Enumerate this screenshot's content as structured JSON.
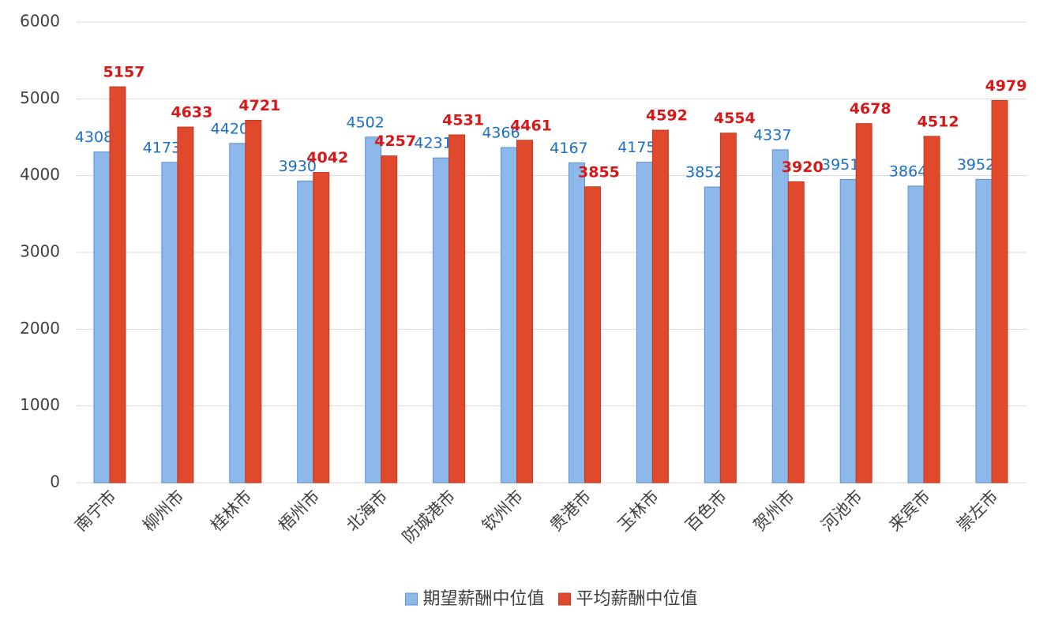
{
  "chart_data": {
    "type": "bar",
    "categories": [
      "南宁市",
      "柳州市",
      "桂林市",
      "梧州市",
      "北海市",
      "防城港市",
      "钦州市",
      "贵港市",
      "玉林市",
      "百色市",
      "贺州市",
      "河池市",
      "来宾市",
      "崇左市"
    ],
    "series": [
      {
        "name": "期望薪酬中位值",
        "color": "#8db8ea",
        "label_color": "#1a6fc9",
        "values": [
          4308,
          4173,
          4420,
          3930,
          4502,
          4231,
          4366,
          4167,
          4175,
          3852,
          4337,
          3951,
          3864,
          3952
        ]
      },
      {
        "name": "平均薪酬中位值",
        "color": "#e0492c",
        "label_color": "#d81818",
        "values": [
          5157,
          4633,
          4721,
          4042,
          4257,
          4531,
          4461,
          3855,
          4592,
          4554,
          3920,
          4678,
          4512,
          4979
        ]
      }
    ],
    "ylim": [
      0,
      6000
    ],
    "yticks": [
      0,
      1000,
      2000,
      3000,
      4000,
      5000,
      6000
    ],
    "grid": true,
    "legend": "bottom"
  }
}
